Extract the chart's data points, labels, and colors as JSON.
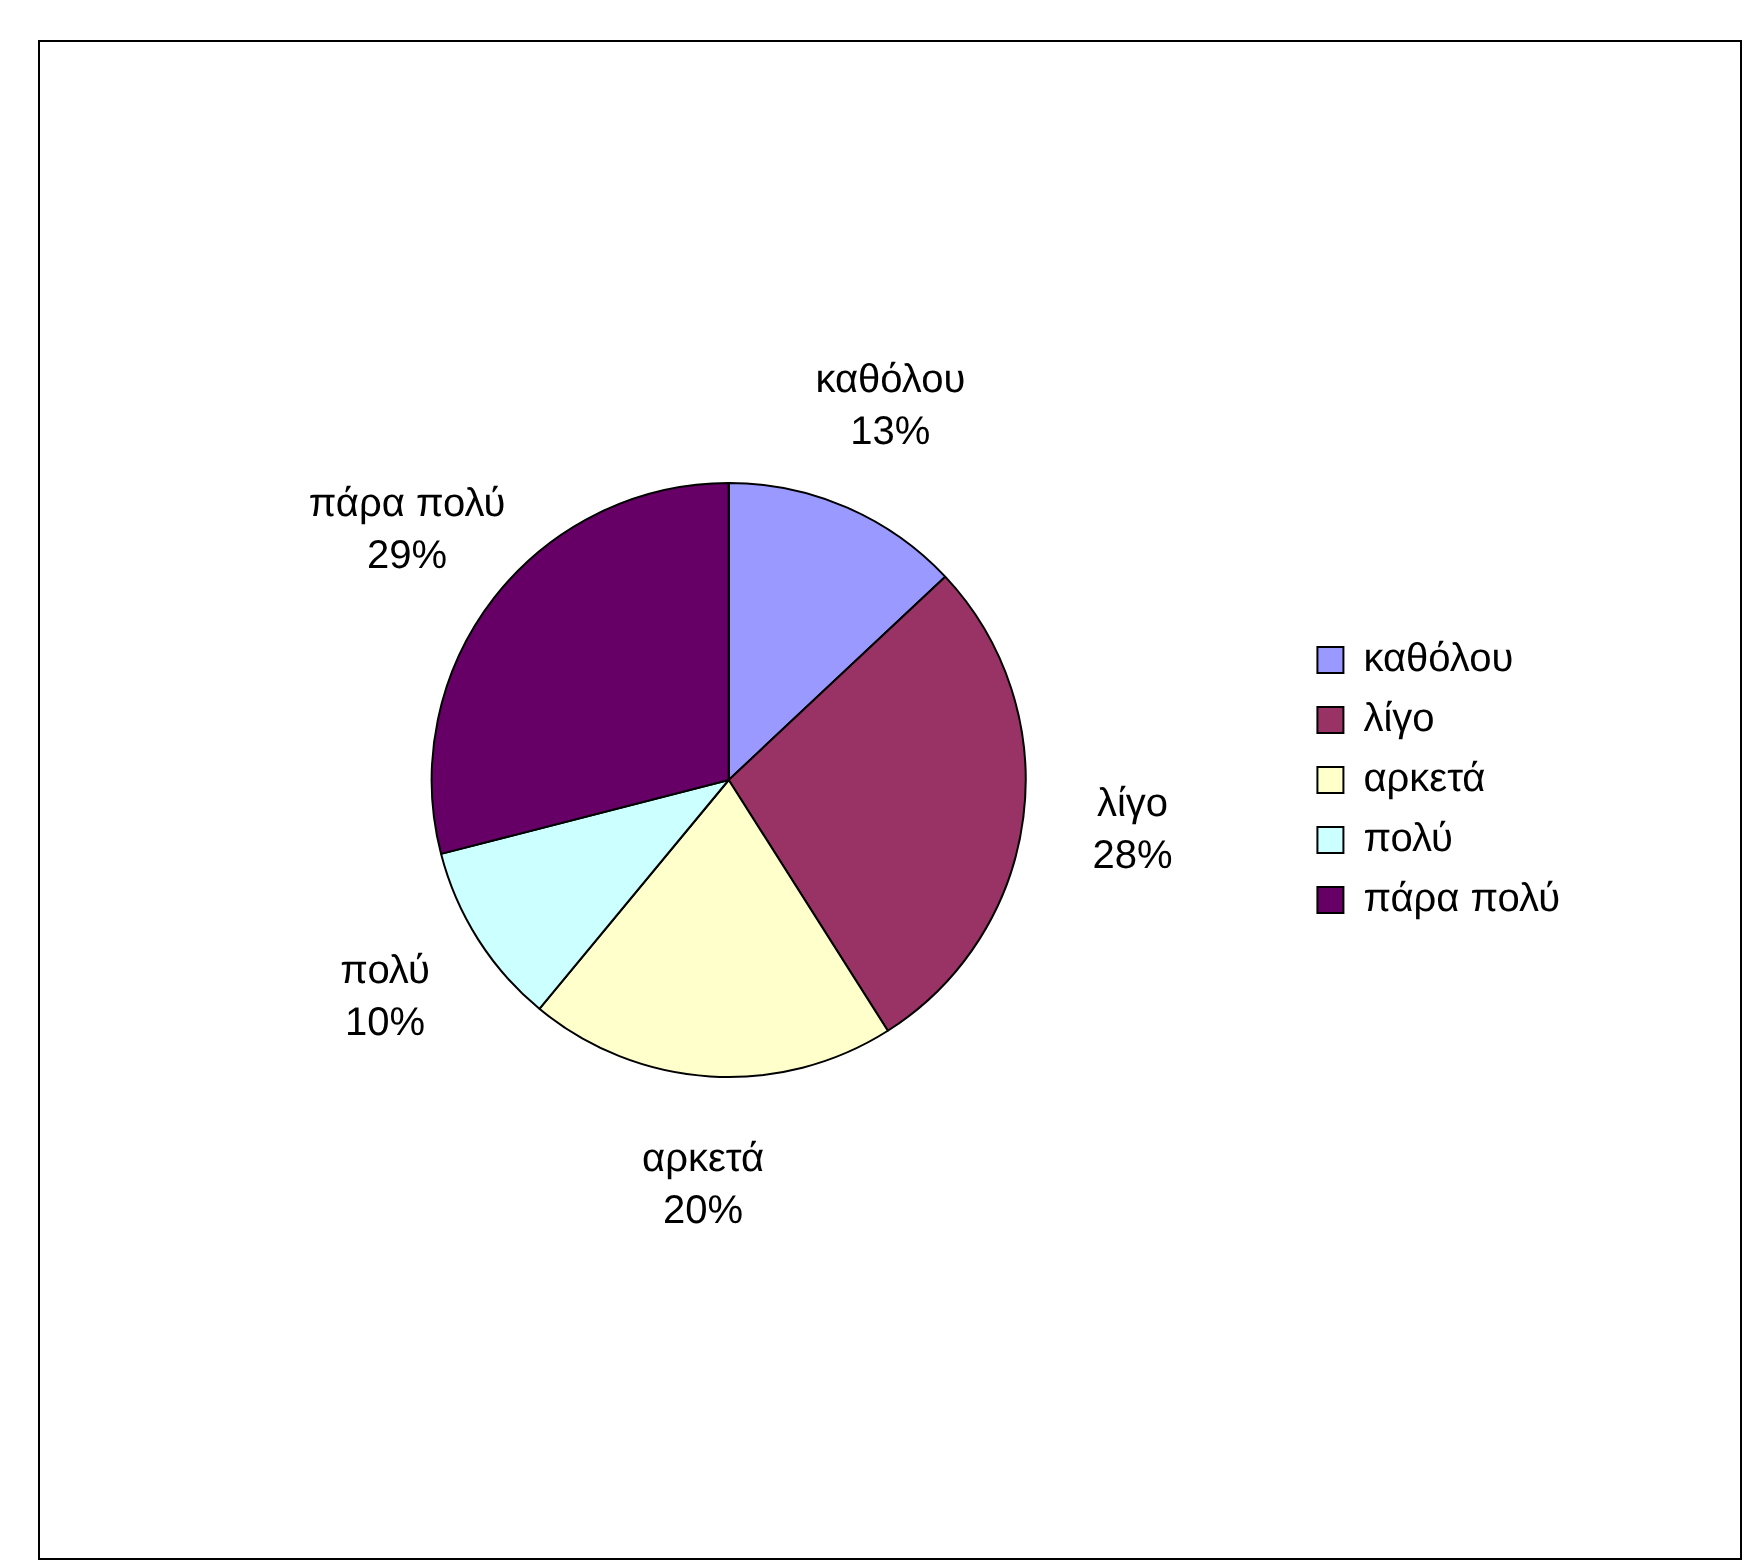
{
  "chart_data": {
    "type": "pie",
    "categories": [
      "καθόλου",
      "λίγο",
      "αρκετά",
      "πολύ",
      "πάρα πολύ"
    ],
    "values": [
      13,
      28,
      20,
      10,
      29
    ],
    "value_labels": [
      "13%",
      "28%",
      "20%",
      "10%",
      "29%"
    ],
    "colors": [
      "#9999ff",
      "#993366",
      "#ffffcc",
      "#ccffff",
      "#660066"
    ],
    "legend": "right"
  }
}
